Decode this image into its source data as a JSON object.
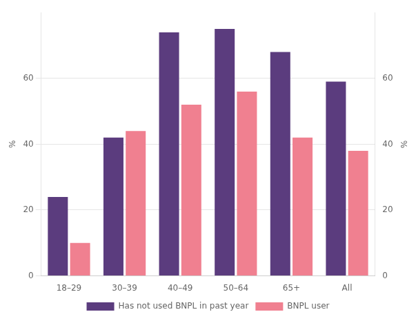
{
  "chart_data": {
    "type": "bar",
    "categories": [
      "18–29",
      "30–39",
      "40–49",
      "50–64",
      "65+",
      "All"
    ],
    "series": [
      {
        "name": "Has not used BNPL in past year",
        "color": "#5b3c7e",
        "values": [
          24,
          42,
          74,
          75,
          68,
          59
        ]
      },
      {
        "name": "BNPL user",
        "color": "#f08090",
        "values": [
          10,
          44,
          52,
          56,
          42,
          38
        ]
      }
    ],
    "ylabel": "%",
    "y2label": "%",
    "ylim": [
      0,
      80
    ],
    "yticks": [
      0,
      20,
      40,
      60
    ],
    "y2lim": [
      0,
      80
    ],
    "y2ticks": [
      0,
      20,
      40,
      60
    ],
    "grid": true,
    "legend": "bottom"
  }
}
